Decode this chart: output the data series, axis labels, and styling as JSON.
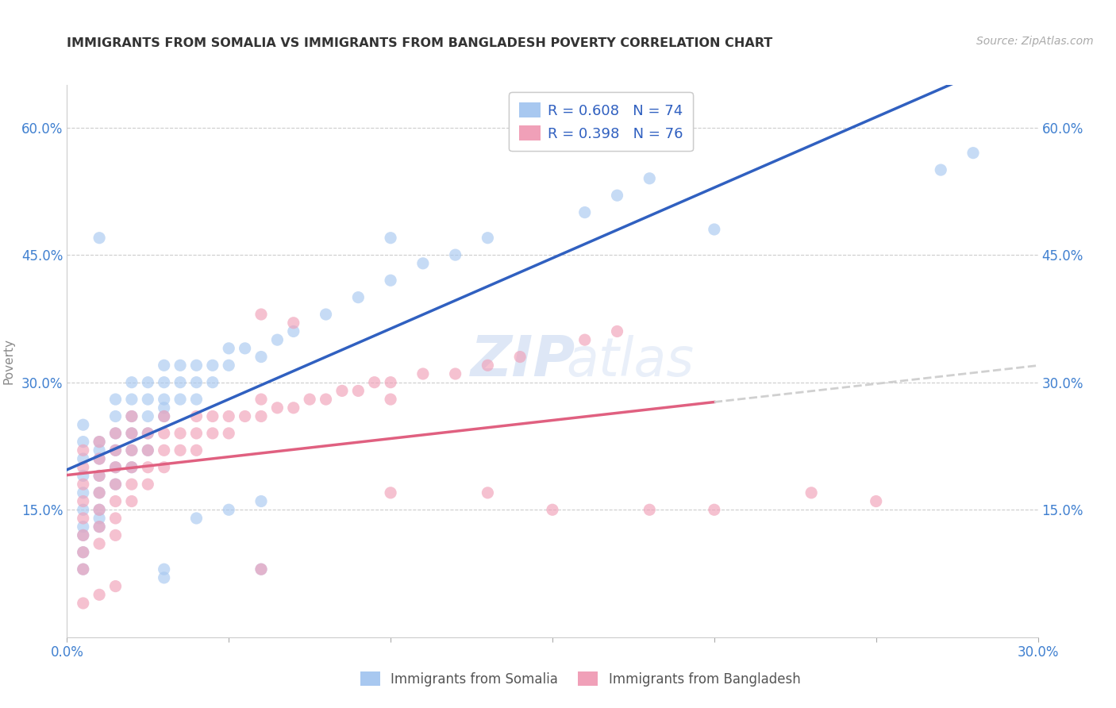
{
  "title": "IMMIGRANTS FROM SOMALIA VS IMMIGRANTS FROM BANGLADESH POVERTY CORRELATION CHART",
  "source": "Source: ZipAtlas.com",
  "ylabel": "Poverty",
  "xlim": [
    0.0,
    0.3
  ],
  "ylim": [
    0.0,
    0.65
  ],
  "yticks": [
    0.15,
    0.3,
    0.45,
    0.6
  ],
  "ytick_labels": [
    "15.0%",
    "30.0%",
    "45.0%",
    "60.0%"
  ],
  "xticks": [
    0.0,
    0.05,
    0.1,
    0.15,
    0.2,
    0.25,
    0.3
  ],
  "xtick_labels": [
    "0.0%",
    "",
    "",
    "",
    "",
    "",
    "30.0%"
  ],
  "somalia_color": "#a8c8f0",
  "bangladesh_color": "#f0a0b8",
  "somalia_line_color": "#3060c0",
  "bangladesh_line_color": "#e06080",
  "bangladesh_dash_color": "#d0d0d0",
  "somalia_R": 0.608,
  "somalia_N": 74,
  "bangladesh_R": 0.398,
  "bangladesh_N": 76,
  "legend_label_somalia": "Immigrants from Somalia",
  "legend_label_bangladesh": "Immigrants from Bangladesh",
  "watermark_zip": "ZIP",
  "watermark_atlas": "atlas",
  "background_color": "#ffffff",
  "grid_color": "#cccccc",
  "title_color": "#333333",
  "legend_text_color": "#3060c0",
  "axis_label_color": "#4080d0",
  "somalia_points": [
    [
      0.005,
      0.13
    ],
    [
      0.005,
      0.15
    ],
    [
      0.005,
      0.17
    ],
    [
      0.005,
      0.19
    ],
    [
      0.005,
      0.21
    ],
    [
      0.005,
      0.23
    ],
    [
      0.005,
      0.25
    ],
    [
      0.005,
      0.12
    ],
    [
      0.005,
      0.1
    ],
    [
      0.005,
      0.08
    ],
    [
      0.01,
      0.13
    ],
    [
      0.01,
      0.15
    ],
    [
      0.01,
      0.17
    ],
    [
      0.01,
      0.19
    ],
    [
      0.01,
      0.21
    ],
    [
      0.01,
      0.23
    ],
    [
      0.01,
      0.14
    ],
    [
      0.01,
      0.22
    ],
    [
      0.015,
      0.2
    ],
    [
      0.015,
      0.22
    ],
    [
      0.015,
      0.24
    ],
    [
      0.015,
      0.18
    ],
    [
      0.015,
      0.26
    ],
    [
      0.015,
      0.28
    ],
    [
      0.02,
      0.22
    ],
    [
      0.02,
      0.24
    ],
    [
      0.02,
      0.26
    ],
    [
      0.02,
      0.2
    ],
    [
      0.02,
      0.28
    ],
    [
      0.02,
      0.3
    ],
    [
      0.025,
      0.24
    ],
    [
      0.025,
      0.26
    ],
    [
      0.025,
      0.22
    ],
    [
      0.025,
      0.28
    ],
    [
      0.025,
      0.3
    ],
    [
      0.03,
      0.26
    ],
    [
      0.03,
      0.28
    ],
    [
      0.03,
      0.3
    ],
    [
      0.03,
      0.32
    ],
    [
      0.03,
      0.27
    ],
    [
      0.035,
      0.28
    ],
    [
      0.035,
      0.3
    ],
    [
      0.035,
      0.32
    ],
    [
      0.04,
      0.3
    ],
    [
      0.04,
      0.32
    ],
    [
      0.04,
      0.28
    ],
    [
      0.045,
      0.3
    ],
    [
      0.045,
      0.32
    ],
    [
      0.05,
      0.32
    ],
    [
      0.05,
      0.34
    ],
    [
      0.055,
      0.34
    ],
    [
      0.06,
      0.33
    ],
    [
      0.065,
      0.35
    ],
    [
      0.07,
      0.36
    ],
    [
      0.08,
      0.38
    ],
    [
      0.09,
      0.4
    ],
    [
      0.1,
      0.42
    ],
    [
      0.11,
      0.44
    ],
    [
      0.12,
      0.45
    ],
    [
      0.13,
      0.47
    ],
    [
      0.01,
      0.47
    ],
    [
      0.1,
      0.47
    ],
    [
      0.16,
      0.5
    ],
    [
      0.17,
      0.52
    ],
    [
      0.18,
      0.54
    ],
    [
      0.2,
      0.48
    ],
    [
      0.03,
      0.08
    ],
    [
      0.03,
      0.07
    ],
    [
      0.06,
      0.08
    ],
    [
      0.04,
      0.14
    ],
    [
      0.05,
      0.15
    ],
    [
      0.06,
      0.16
    ],
    [
      0.28,
      0.57
    ],
    [
      0.27,
      0.55
    ]
  ],
  "bangladesh_points": [
    [
      0.005,
      0.12
    ],
    [
      0.005,
      0.14
    ],
    [
      0.005,
      0.16
    ],
    [
      0.005,
      0.18
    ],
    [
      0.005,
      0.1
    ],
    [
      0.005,
      0.08
    ],
    [
      0.005,
      0.2
    ],
    [
      0.005,
      0.22
    ],
    [
      0.01,
      0.13
    ],
    [
      0.01,
      0.15
    ],
    [
      0.01,
      0.17
    ],
    [
      0.01,
      0.19
    ],
    [
      0.01,
      0.21
    ],
    [
      0.01,
      0.11
    ],
    [
      0.01,
      0.23
    ],
    [
      0.015,
      0.14
    ],
    [
      0.015,
      0.16
    ],
    [
      0.015,
      0.18
    ],
    [
      0.015,
      0.2
    ],
    [
      0.015,
      0.22
    ],
    [
      0.015,
      0.24
    ],
    [
      0.015,
      0.12
    ],
    [
      0.02,
      0.16
    ],
    [
      0.02,
      0.18
    ],
    [
      0.02,
      0.2
    ],
    [
      0.02,
      0.22
    ],
    [
      0.02,
      0.24
    ],
    [
      0.02,
      0.26
    ],
    [
      0.025,
      0.18
    ],
    [
      0.025,
      0.2
    ],
    [
      0.025,
      0.22
    ],
    [
      0.025,
      0.24
    ],
    [
      0.03,
      0.2
    ],
    [
      0.03,
      0.22
    ],
    [
      0.03,
      0.24
    ],
    [
      0.03,
      0.26
    ],
    [
      0.035,
      0.22
    ],
    [
      0.035,
      0.24
    ],
    [
      0.04,
      0.22
    ],
    [
      0.04,
      0.24
    ],
    [
      0.04,
      0.26
    ],
    [
      0.045,
      0.24
    ],
    [
      0.045,
      0.26
    ],
    [
      0.05,
      0.24
    ],
    [
      0.05,
      0.26
    ],
    [
      0.055,
      0.26
    ],
    [
      0.06,
      0.26
    ],
    [
      0.06,
      0.28
    ],
    [
      0.065,
      0.27
    ],
    [
      0.07,
      0.27
    ],
    [
      0.075,
      0.28
    ],
    [
      0.08,
      0.28
    ],
    [
      0.085,
      0.29
    ],
    [
      0.09,
      0.29
    ],
    [
      0.095,
      0.3
    ],
    [
      0.1,
      0.3
    ],
    [
      0.11,
      0.31
    ],
    [
      0.12,
      0.31
    ],
    [
      0.13,
      0.32
    ],
    [
      0.14,
      0.33
    ],
    [
      0.005,
      0.04
    ],
    [
      0.01,
      0.05
    ],
    [
      0.015,
      0.06
    ],
    [
      0.16,
      0.35
    ],
    [
      0.17,
      0.36
    ],
    [
      0.06,
      0.38
    ],
    [
      0.07,
      0.37
    ],
    [
      0.13,
      0.17
    ],
    [
      0.23,
      0.17
    ],
    [
      0.25,
      0.16
    ],
    [
      0.15,
      0.15
    ],
    [
      0.18,
      0.15
    ],
    [
      0.2,
      0.15
    ],
    [
      0.1,
      0.17
    ],
    [
      0.06,
      0.08
    ],
    [
      0.1,
      0.28
    ]
  ]
}
